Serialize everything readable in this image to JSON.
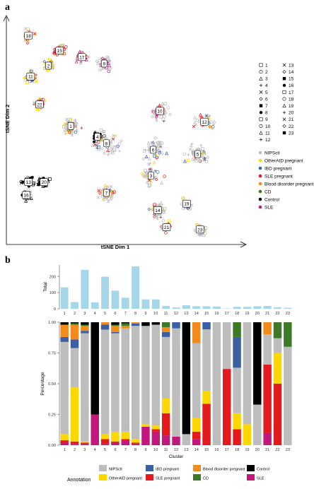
{
  "panels": {
    "a": "a",
    "b": "b"
  },
  "chart_data": [
    {
      "type": "scatter",
      "xlabel": "tSNE Dim 1",
      "ylabel": "tSNE Dim 2",
      "grid": false,
      "shape_legend": [
        "1",
        "2",
        "3",
        "4",
        "5",
        "6",
        "7",
        "8",
        "9",
        "10",
        "11",
        "12",
        "13",
        "14",
        "15",
        "16",
        "17",
        "18",
        "19",
        "20",
        "21",
        "22",
        "23"
      ],
      "color_legend": {
        "position": "right",
        "entries": [
          {
            "name": "NIPSctl",
            "color": "#bdbdbd"
          },
          {
            "name": "OtherAID pregnant",
            "color": "#ffd700"
          },
          {
            "name": "IBD pregnant",
            "color": "#3a5fa3"
          },
          {
            "name": "SLE pregnant",
            "color": "#e41a1c"
          },
          {
            "name": "Blood disorder pregnant",
            "color": "#f28a1c"
          },
          {
            "name": "CD",
            "color": "#3d7a26"
          },
          {
            "name": "Control",
            "color": "#000000"
          },
          {
            "name": "SLE",
            "color": "#c2187e"
          }
        ]
      },
      "cluster_labels": [
        {
          "label": "18",
          "x": 8,
          "y": 95
        },
        {
          "label": "15",
          "x": 22,
          "y": 88
        },
        {
          "label": "17",
          "x": 32,
          "y": 85
        },
        {
          "label": "9",
          "x": 42,
          "y": 82
        },
        {
          "label": "2",
          "x": 17,
          "y": 81
        },
        {
          "label": "11",
          "x": 9,
          "y": 76
        },
        {
          "label": "22",
          "x": 13,
          "y": 63
        },
        {
          "label": "10",
          "x": 67,
          "y": 60
        },
        {
          "label": "12",
          "x": 87,
          "y": 55
        },
        {
          "label": "1",
          "x": 27,
          "y": 53
        },
        {
          "label": "4",
          "x": 39,
          "y": 48
        },
        {
          "label": "8",
          "x": 43,
          "y": 45
        },
        {
          "label": "6",
          "x": 64,
          "y": 42
        },
        {
          "label": "5",
          "x": 84,
          "y": 40
        },
        {
          "label": "3",
          "x": 63,
          "y": 30
        },
        {
          "label": "7",
          "x": 43,
          "y": 22
        },
        {
          "label": "20",
          "x": 15,
          "y": 27
        },
        {
          "label": "13",
          "x": 8,
          "y": 27
        },
        {
          "label": "16",
          "x": 7,
          "y": 21
        },
        {
          "label": "19",
          "x": 79,
          "y": 17
        },
        {
          "label": "14",
          "x": 66,
          "y": 14
        },
        {
          "label": "21",
          "x": 70,
          "y": 6
        },
        {
          "label": "23",
          "x": 85,
          "y": 5
        }
      ]
    },
    {
      "type": "bar",
      "ylabel": "Total",
      "categories": [
        "1",
        "2",
        "3",
        "4",
        "5",
        "6",
        "7",
        "8",
        "9",
        "10",
        "11",
        "12",
        "13",
        "14",
        "15",
        "16",
        "17",
        "18",
        "19",
        "20",
        "21",
        "22",
        "23"
      ],
      "values": [
        132,
        42,
        240,
        40,
        198,
        112,
        68,
        262,
        58,
        58,
        18,
        8,
        22,
        16,
        16,
        14,
        2,
        12,
        12,
        16,
        18,
        10,
        6
      ],
      "ylim": [
        0,
        270
      ],
      "yticks": [
        "0",
        "100",
        "200"
      ],
      "color": "#a6d7e8"
    },
    {
      "type": "bar",
      "stacked": true,
      "xlabel": "Cluster",
      "ylabel": "Percentage",
      "ylim": [
        0,
        1
      ],
      "yticks": [
        "0.00",
        "0.25",
        "0.50",
        "0.75",
        "1.00"
      ],
      "categories": [
        "1",
        "2",
        "3",
        "4",
        "5",
        "6",
        "7",
        "8",
        "9",
        "10",
        "11",
        "12",
        "13",
        "14",
        "15",
        "16",
        "17",
        "18",
        "19",
        "20",
        "21",
        "22",
        "23"
      ],
      "series_order_bottom_to_top": [
        "SLE",
        "SLE pregnant",
        "OtherAID pregnant",
        "NIPSctl",
        "IBD pregnant",
        "Blood disorder pregnant",
        "CD",
        "Control"
      ],
      "series": [
        {
          "name": "NIPSctl",
          "color": "#bdbdbd",
          "values": [
            0.75,
            0.32,
            0.88,
            0.0,
            0.85,
            0.8,
            0.84,
            0.92,
            0.8,
            0.82,
            0.5,
            0.88,
            0.09,
            0.61,
            0.52,
            1.0,
            0.38,
            0.37,
            0.83,
            0.33,
            0.22,
            0.12,
            0.8
          ]
        },
        {
          "name": "OtherAID pregnant",
          "color": "#ffd700",
          "values": [
            0.05,
            0.44,
            0.01,
            0.0,
            0.04,
            0.08,
            0.06,
            0.03,
            0.02,
            0.03,
            0.12,
            0.0,
            0.0,
            0.11,
            0.11,
            0.0,
            0.0,
            0.13,
            0.17,
            0.0,
            0.0,
            0.25,
            0.0
          ]
        },
        {
          "name": "IBD pregnant",
          "color": "#3a5fa3",
          "values": [
            0.04,
            0.07,
            0.02,
            0.0,
            0.04,
            0.01,
            0.0,
            0.02,
            0.0,
            0.0,
            0.04,
            0.05,
            0.0,
            0.0,
            0.06,
            0.0,
            0.0,
            0.25,
            0.0,
            0.0,
            0.0,
            0.0,
            0.0
          ]
        },
        {
          "name": "SLE pregnant",
          "color": "#e41a1c",
          "values": [
            0.02,
            0.02,
            0.01,
            0.0,
            0.04,
            0.01,
            0.01,
            0.01,
            0.0,
            0.02,
            0.18,
            0.0,
            0.0,
            0.06,
            0.35,
            0.0,
            0.62,
            0.13,
            0.0,
            0.0,
            0.5,
            0.5,
            0.0
          ]
        },
        {
          "name": "Blood disorder pregnant",
          "color": "#f28a1c",
          "values": [
            0.1,
            0.12,
            0.04,
            0.0,
            0.02,
            0.05,
            0.02,
            0.01,
            0.0,
            0.0,
            0.04,
            0.0,
            0.0,
            0.17,
            0.0,
            0.0,
            0.0,
            0.0,
            0.0,
            0.0,
            0.09,
            0.0,
            0.0
          ]
        },
        {
          "name": "CD",
          "color": "#3d7a26",
          "values": [
            0.0,
            0.01,
            0.01,
            0.0,
            0.0,
            0.01,
            0.02,
            0.0,
            0.0,
            0.0,
            0.04,
            0.0,
            0.0,
            0.0,
            0.0,
            0.0,
            0.0,
            0.12,
            0.0,
            0.0,
            0.0,
            0.13,
            0.2
          ]
        },
        {
          "name": "Control",
          "color": "#000000",
          "values": [
            0.02,
            0.01,
            0.02,
            0.75,
            0.0,
            0.02,
            0.01,
            0.0,
            0.03,
            0.02,
            0.0,
            0.0,
            0.91,
            0.0,
            0.0,
            0.0,
            0.0,
            0.0,
            0.0,
            0.67,
            0.0,
            0.0,
            0.0
          ]
        },
        {
          "name": "SLE",
          "color": "#c2187e",
          "values": [
            0.02,
            0.01,
            0.01,
            0.25,
            0.01,
            0.02,
            0.04,
            0.01,
            0.15,
            0.11,
            0.08,
            0.07,
            0.0,
            0.05,
            0.0,
            0.0,
            0.0,
            0.0,
            0.0,
            0.0,
            0.09,
            0.0,
            0.0
          ]
        }
      ]
    }
  ],
  "legend": {
    "title": "Annotation"
  }
}
